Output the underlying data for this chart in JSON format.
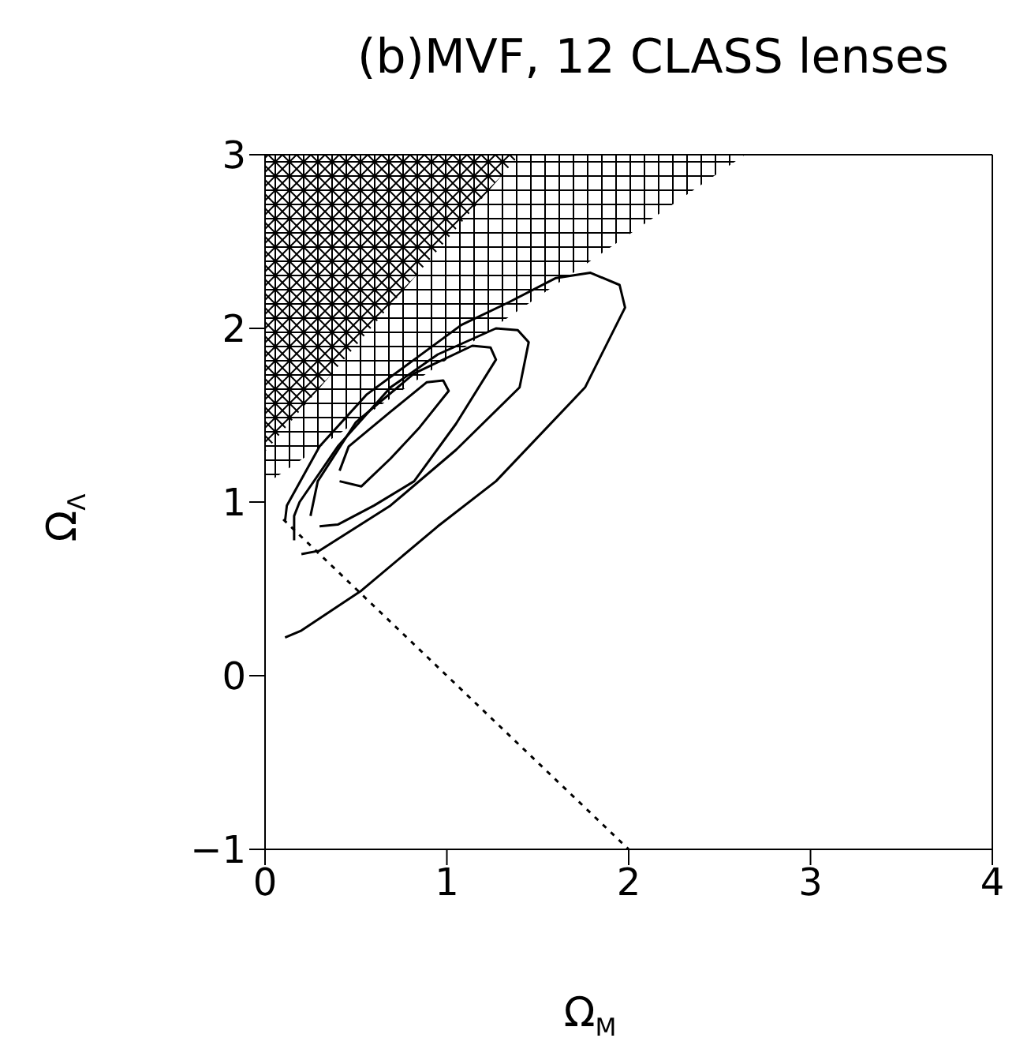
{
  "chart_data": {
    "type": "line",
    "title": "(b)MVF, 12 CLASS lenses",
    "xlabel": "Ω$_{M}$",
    "ylabel": "Ω$_{Λ}$",
    "xlim": [
      0,
      4
    ],
    "ylim": [
      -1,
      3
    ],
    "xticks": [
      0,
      1,
      2,
      3,
      4
    ],
    "yticks": [
      -1,
      0,
      1,
      2,
      3
    ],
    "marker": "none",
    "series": [
      {
        "color": "#000000",
        "x": [
          0.41,
          0.53,
          0.69,
          0.85,
          1.01,
          0.98,
          0.89,
          0.69,
          0.46,
          0.41
        ],
        "values": [
          1.12,
          1.09,
          1.25,
          1.43,
          1.64,
          1.7,
          1.69,
          1.52,
          1.32,
          1.18
        ]
      },
      {
        "color": "#000000",
        "x": [
          0.3,
          0.4,
          0.6,
          0.82,
          1.05,
          1.27,
          1.24,
          1.14,
          0.82,
          0.5,
          0.29,
          0.25
        ],
        "values": [
          0.86,
          0.87,
          0.98,
          1.12,
          1.45,
          1.82,
          1.89,
          1.9,
          1.74,
          1.46,
          1.12,
          0.92
        ]
      },
      {
        "color": "#000000",
        "x": [
          0.2,
          0.3,
          0.69,
          1.05,
          1.4,
          1.45,
          1.39,
          1.27,
          0.95,
          0.69,
          0.4,
          0.19,
          0.16,
          0.16
        ],
        "values": [
          0.7,
          0.72,
          0.98,
          1.3,
          1.66,
          1.92,
          1.99,
          2.0,
          1.85,
          1.66,
          1.32,
          1.0,
          0.92,
          0.78
        ]
      },
      {
        "color": "#000000",
        "x": [
          0.11,
          0.2,
          0.53,
          0.95,
          1.27,
          1.76,
          1.98,
          1.95,
          1.79,
          1.6,
          1.34,
          1.08,
          0.82,
          0.56,
          0.3,
          0.12,
          0.11
        ],
        "values": [
          0.22,
          0.26,
          0.49,
          0.86,
          1.12,
          1.66,
          2.12,
          2.25,
          2.32,
          2.29,
          2.15,
          2.02,
          1.82,
          1.62,
          1.32,
          0.98,
          0.89
        ]
      },
      {
        "color": "#000000",
        "line_style": "dotted",
        "x": [
          0.1,
          2
        ],
        "values": [
          0.9,
          -1
        ]
      },
      {
        "type": "area",
        "color": "#000000",
        "x": [
          0,
          2.64
        ],
        "values": [
          1.1,
          3.0
        ]
      },
      {
        "type": "area",
        "color": "#000000",
        "x": [
          0,
          1.4
        ],
        "values": [
          1.29,
          3.0
        ]
      }
    ]
  }
}
